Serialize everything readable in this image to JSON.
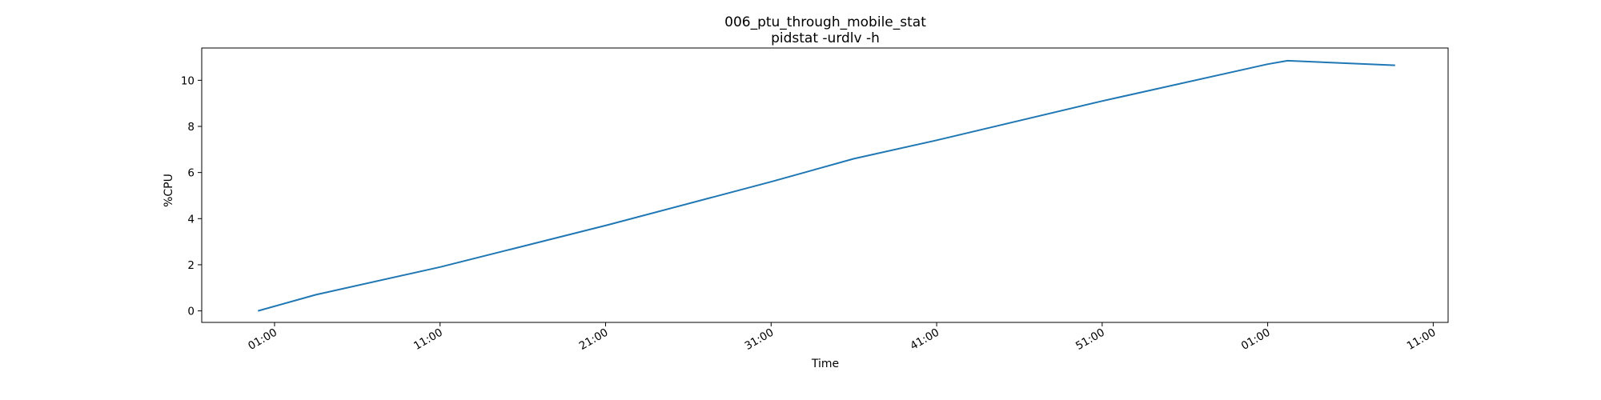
{
  "chart_data": {
    "type": "line",
    "title": "006_ptu_through_mobile_stat",
    "subtitle": "pidstat -urdlv -h",
    "xlabel": "Time",
    "ylabel": "%CPU",
    "x_tick_labels": [
      "01:00",
      "11:00",
      "21:00",
      "31:00",
      "41:00",
      "51:00",
      "01:00",
      "11:00"
    ],
    "x_ticks_minutes": [
      0,
      10,
      20,
      30,
      40,
      50,
      60,
      70
    ],
    "xlim_minutes": [
      -4.4,
      70.9
    ],
    "ylim": [
      -0.5,
      11.4
    ],
    "y_ticks": [
      0,
      2,
      4,
      6,
      8,
      10
    ],
    "grid": false,
    "line_color": "#1f77b4",
    "series": [
      {
        "x_minutes": [
          -1.0,
          2.5,
          10.0,
          20.0,
          30.0,
          35.0,
          40.0,
          50.0,
          60.0,
          61.2,
          67.7
        ],
        "values": [
          0.0,
          0.7,
          1.9,
          3.7,
          5.6,
          6.6,
          7.4,
          9.1,
          10.7,
          10.85,
          10.65
        ]
      }
    ]
  }
}
